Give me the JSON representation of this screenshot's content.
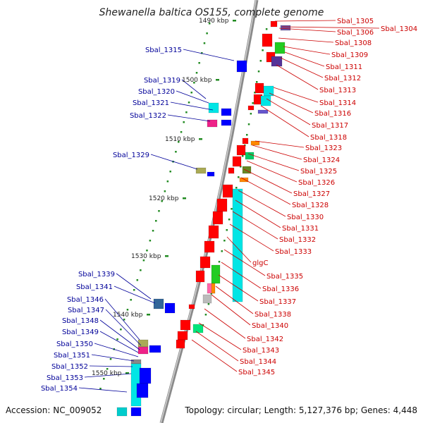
{
  "title": "Shewanella baltica OS155, complete genome",
  "footer": {
    "accession": "Accession: NC_009052",
    "topology": "Topology: circular; Length: 5,127,376 bp; Genes: 4,448"
  },
  "colors": {
    "forward_label": "#cc0000",
    "reverse_label": "#000099",
    "forward_arrow": "#ff0000",
    "reverse_arrow": "#0000ff",
    "backbone": "#8a8a8a",
    "tick": "#228b22"
  },
  "scale_labels": [
    "1490 kbp",
    "1500 kbp",
    "1510 kbp",
    "1520 kbp",
    "1530 kbp",
    "1540 kbp",
    "1550 kbp"
  ],
  "forward_genes": [
    "Sbal_1304",
    "Sbal_1305",
    "Sbal_1306",
    "Sbal_1308",
    "Sbal_1309",
    "Sbal_1311",
    "Sbal_1312",
    "Sbal_1313",
    "Sbal_1314",
    "Sbal_1316",
    "Sbal_1317",
    "Sbal_1318",
    "Sbal_1323",
    "Sbal_1324",
    "Sbal_1325",
    "Sbal_1326",
    "Sbal_1327",
    "Sbal_1328",
    "Sbal_1330",
    "Sbal_1331",
    "Sbal_1332",
    "Sbal_1333",
    "glgC",
    "Sbal_1335",
    "Sbal_1336",
    "Sbal_1337",
    "Sbal_1338",
    "Sbal_1340",
    "Sbal_1342",
    "Sbal_1343",
    "Sbal_1344",
    "Sbal_1345"
  ],
  "reverse_genes": [
    "Sbal_1315",
    "Sbal_1319",
    "Sbal_1320",
    "Sbal_1321",
    "Sbal_1322",
    "Sbal_1329",
    "Sbal_1339",
    "Sbal_1341",
    "Sbal_1346",
    "Sbal_1347",
    "Sbal_1348",
    "Sbal_1349",
    "Sbal_1350",
    "Sbal_1351",
    "Sbal_1352",
    "Sbal_1353",
    "Sbal_1354"
  ]
}
